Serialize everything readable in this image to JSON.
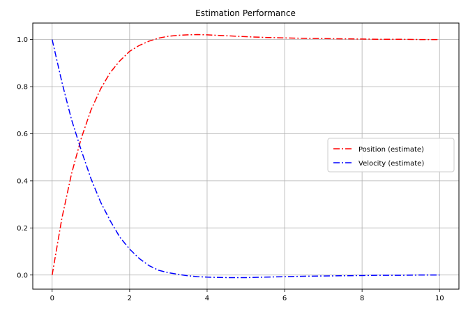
{
  "chart_data": {
    "type": "line",
    "title": "Estimation Performance",
    "xlabel": "",
    "ylabel": "",
    "xlim": [
      -0.5,
      10.5
    ],
    "ylim": [
      -0.06,
      1.07
    ],
    "xticks": [
      0,
      2,
      4,
      6,
      8,
      10
    ],
    "yticks": [
      0.0,
      0.2,
      0.4,
      0.6,
      0.8,
      1.0
    ],
    "xtick_labels": [
      "0",
      "2",
      "4",
      "6",
      "8",
      "10"
    ],
    "ytick_labels": [
      "0.0",
      "0.2",
      "0.4",
      "0.6",
      "0.8",
      "1.0"
    ],
    "grid": true,
    "legend_position": "center-right",
    "x": [
      0,
      0.25,
      0.5,
      0.75,
      1,
      1.25,
      1.5,
      1.75,
      2,
      2.25,
      2.5,
      2.75,
      3,
      3.25,
      3.5,
      3.75,
      4,
      4.25,
      4.5,
      4.75,
      5,
      5.5,
      6,
      6.5,
      7,
      7.5,
      8,
      8.5,
      9,
      9.5,
      10
    ],
    "series": [
      {
        "name": "Position (estimate)",
        "color": "#ff0000",
        "style": "dash-dot",
        "values": [
          0.0,
          0.24,
          0.43,
          0.58,
          0.7,
          0.79,
          0.86,
          0.91,
          0.95,
          0.975,
          0.993,
          1.006,
          1.014,
          1.018,
          1.02,
          1.021,
          1.02,
          1.018,
          1.016,
          1.014,
          1.012,
          1.009,
          1.007,
          1.005,
          1.004,
          1.003,
          1.002,
          1.001,
          1.001,
          1.0,
          1.0
        ]
      },
      {
        "name": "Velocity (estimate)",
        "color": "#0000ff",
        "style": "dash-dot",
        "values": [
          1.0,
          0.82,
          0.66,
          0.53,
          0.41,
          0.31,
          0.23,
          0.16,
          0.11,
          0.07,
          0.04,
          0.02,
          0.01,
          0.003,
          -0.003,
          -0.007,
          -0.009,
          -0.01,
          -0.011,
          -0.011,
          -0.011,
          -0.009,
          -0.007,
          -0.005,
          -0.004,
          -0.003,
          -0.002,
          -0.001,
          -0.001,
          0.0,
          0.0
        ]
      }
    ]
  }
}
